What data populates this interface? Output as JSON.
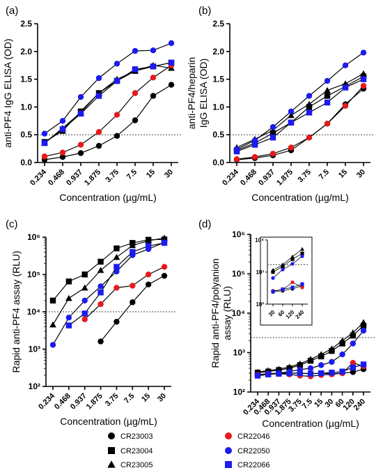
{
  "chart_data": [
    {
      "panel": "(a)",
      "type": "line",
      "ylabel": "anti-PF4 IgG ELISA (OD)",
      "xlabel": "Concentration (µg/mL)",
      "categories": [
        "0.234",
        "0.468",
        "0.937",
        "1.875",
        "3.75",
        "7.5",
        "15",
        "30"
      ],
      "yscale": "linear",
      "ylim": [
        0,
        2.5
      ],
      "yticks": [
        "0.0",
        "0.5",
        "1.0",
        "1.5",
        "2.0",
        "2.5"
      ],
      "cutoff": 0.5,
      "series": [
        {
          "name": "CR23003",
          "values": [
            0.05,
            0.1,
            0.17,
            0.3,
            0.48,
            0.76,
            1.2,
            1.4
          ]
        },
        {
          "name": "CR23004",
          "values": [
            0.37,
            0.57,
            0.92,
            1.25,
            1.47,
            1.65,
            1.73,
            1.8
          ]
        },
        {
          "name": "CR23005",
          "values": [
            0.35,
            0.62,
            0.9,
            1.25,
            1.5,
            1.65,
            1.75,
            1.7
          ]
        },
        {
          "name": "CR22046",
          "values": [
            0.11,
            0.18,
            0.32,
            0.55,
            0.86,
            1.25,
            1.53,
            1.75
          ]
        },
        {
          "name": "CR22050",
          "values": [
            0.52,
            0.75,
            1.18,
            1.52,
            1.78,
            2.01,
            2.02,
            2.15
          ]
        },
        {
          "name": "CR22066",
          "values": [
            0.35,
            0.6,
            0.88,
            1.2,
            1.47,
            1.68,
            1.73,
            1.8
          ]
        }
      ]
    },
    {
      "panel": "(b)",
      "type": "line",
      "ylabel": "anti-PF4/heparin IgG ELISA (OD)",
      "xlabel": "Concentration (µg/mL)",
      "categories": [
        "0.234",
        "0.468",
        "0.937",
        "1.875",
        "3.75",
        "7.5",
        "15",
        "30"
      ],
      "yscale": "linear",
      "ylim": [
        0,
        2.5
      ],
      "yticks": [
        "0.0",
        "0.5",
        "1.0",
        "1.5",
        "2.0",
        "2.5"
      ],
      "cutoff": 0.5,
      "series": [
        {
          "name": "CR23003",
          "values": [
            0.05,
            0.08,
            0.13,
            0.22,
            0.45,
            0.7,
            1.05,
            1.33
          ]
        },
        {
          "name": "CR23004",
          "values": [
            0.22,
            0.35,
            0.53,
            0.72,
            1.0,
            1.2,
            1.37,
            1.55
          ]
        },
        {
          "name": "CR23005",
          "values": [
            0.27,
            0.42,
            0.58,
            0.85,
            1.05,
            1.3,
            1.42,
            1.6
          ]
        },
        {
          "name": "CR22046",
          "values": [
            0.06,
            0.1,
            0.16,
            0.27,
            0.45,
            0.7,
            1.02,
            1.38
          ]
        },
        {
          "name": "CR22050",
          "values": [
            0.24,
            0.4,
            0.64,
            0.92,
            1.2,
            1.47,
            1.75,
            1.98
          ]
        },
        {
          "name": "CR22066",
          "values": [
            0.2,
            0.32,
            0.45,
            0.72,
            0.9,
            1.08,
            1.35,
            1.5
          ]
        }
      ]
    },
    {
      "panel": "(c)",
      "type": "line",
      "ylabel": "Rapid anti-PF4 assay (RLU)",
      "xlabel": "Concentration (µg/mL)",
      "categories": [
        "0.234",
        "0.468",
        "0.937",
        "1.875",
        "3.75",
        "7.5",
        "15",
        "30"
      ],
      "yscale": "log",
      "ylim": [
        100,
        1000000
      ],
      "yticks": [
        "10²",
        "10³",
        "10⁴",
        "10⁵",
        "10⁶"
      ],
      "cutoff": 10000,
      "series": [
        {
          "name": "CR23003",
          "values": [
            null,
            null,
            null,
            1600,
            5400,
            18000,
            54000,
            92000
          ]
        },
        {
          "name": "CR23004",
          "values": [
            20000,
            65000,
            100000,
            220000,
            500000,
            700000,
            850000,
            870000
          ]
        },
        {
          "name": "CR23005",
          "values": [
            4500,
            23000,
            44000,
            130000,
            290000,
            600000,
            800000,
            950000
          ]
        },
        {
          "name": "CR22046",
          "values": [
            null,
            null,
            6300,
            16000,
            44000,
            50000,
            100000,
            160000
          ]
        },
        {
          "name": "CR22050",
          "values": [
            1300,
            7000,
            20000,
            48000,
            120000,
            330000,
            480000,
            720000
          ]
        },
        {
          "name": "CR22066",
          "values": [
            null,
            4300,
            9000,
            33000,
            160000,
            400000,
            580000,
            700000
          ]
        }
      ]
    },
    {
      "panel": "(d)",
      "type": "line",
      "ylabel": "Rapid anti-PF4/polyanion assay (RLU)",
      "xlabel": "Concentration (µg/mL)",
      "categories": [
        "0.234",
        "0.468",
        "0.937",
        "1.875",
        "3.75",
        "7.5",
        "15",
        "30",
        "60",
        "120",
        "240"
      ],
      "yscale": "log",
      "ylim": [
        100,
        1000000
      ],
      "yticks": [
        "10²",
        "10³",
        "10⁴",
        "10⁵",
        "10⁶"
      ],
      "cutoff": 2400,
      "series": [
        {
          "name": "CR23003",
          "values": [
            280,
            290,
            300,
            300,
            300,
            290,
            300,
            290,
            300,
            320,
            380
          ]
        },
        {
          "name": "CR23004",
          "values": [
            310,
            330,
            360,
            400,
            480,
            620,
            800,
            1100,
            1700,
            2700,
            4800
          ]
        },
        {
          "name": "CR23005",
          "values": [
            320,
            350,
            380,
            430,
            520,
            680,
            900,
            1250,
            2000,
            3200,
            5800
          ]
        },
        {
          "name": "CR22046",
          "values": [
            270,
            290,
            290,
            280,
            260,
            250,
            270,
            280,
            300,
            550,
            450
          ]
        },
        {
          "name": "CR22050",
          "values": [
            260,
            280,
            300,
            330,
            370,
            400,
            480,
            580,
            900,
            1700,
            3600
          ]
        },
        {
          "name": "CR22066",
          "values": [
            260,
            280,
            290,
            300,
            300,
            290,
            300,
            310,
            330,
            420,
            500
          ]
        }
      ],
      "inset": {
        "categories": [
          "30",
          "60",
          "120",
          "240"
        ],
        "yscale": "log",
        "ylim": [
          100,
          10000
        ],
        "yticks": [
          "10²",
          "10³",
          "10⁴"
        ],
        "cutoff": 1700,
        "series": [
          {
            "name": "CR23003",
            "values": [
              240,
              260,
              300,
              370
            ]
          },
          {
            "name": "CR23004",
            "values": [
              1000,
              1500,
              2500,
              3800
            ]
          },
          {
            "name": "CR23005",
            "values": [
              1150,
              1700,
              3000,
              5200
            ]
          },
          {
            "name": "CR22046",
            "values": [
              260,
              280,
              480,
              330
            ]
          },
          {
            "name": "CR22050",
            "values": [
              650,
              1200,
              1800,
              3100
            ]
          },
          {
            "name": "CR22066",
            "values": [
              250,
              290,
              330,
              420
            ]
          }
        ]
      }
    }
  ],
  "legend": [
    {
      "name": "CR23003",
      "color": "#000000",
      "marker": "circle"
    },
    {
      "name": "CR23004",
      "color": "#000000",
      "marker": "square"
    },
    {
      "name": "CR23005",
      "color": "#000000",
      "marker": "triangle"
    },
    {
      "name": "CR22046",
      "color": "#e8191c",
      "marker": "circle"
    },
    {
      "name": "CR22050",
      "color": "#1b1bf0",
      "marker": "circle"
    },
    {
      "name": "CR22066",
      "color": "#1b1bf0",
      "marker": "square"
    }
  ]
}
